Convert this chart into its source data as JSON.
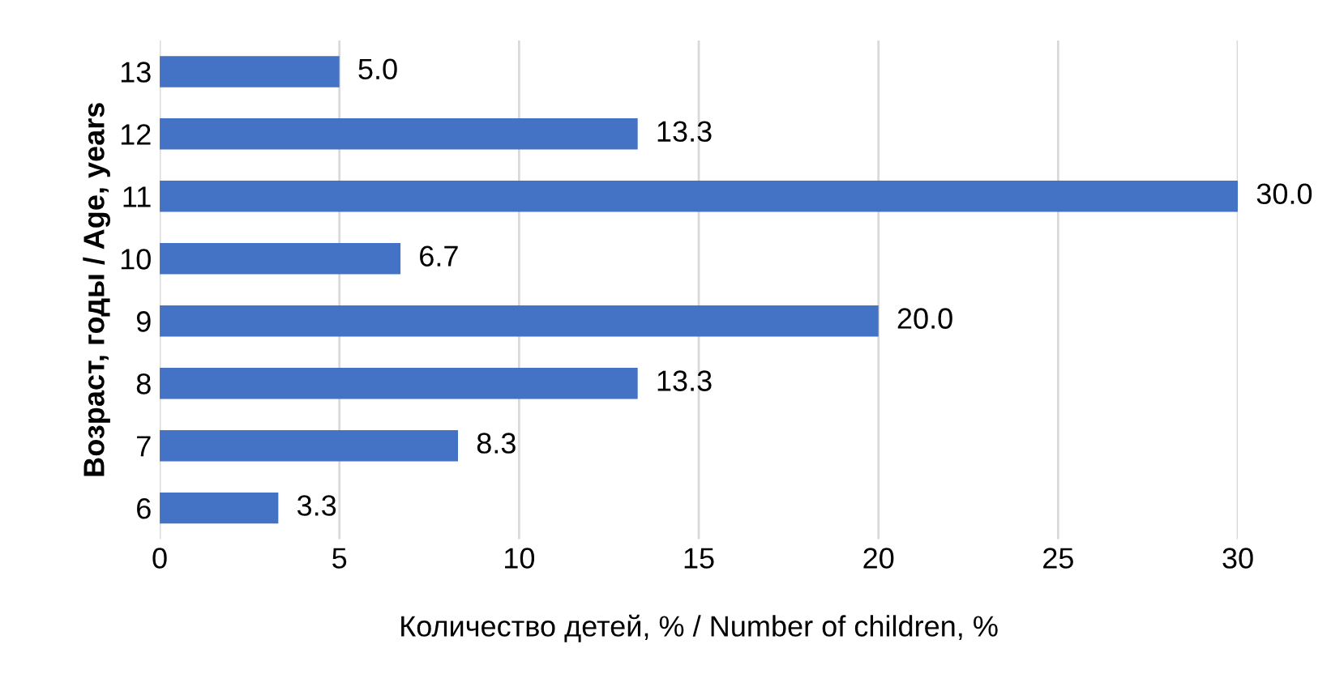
{
  "chart_data": {
    "type": "bar",
    "orientation": "horizontal",
    "xlabel": "Количество детей, % / Number of children, %",
    "ylabel": "Возраст, годы / Age, years",
    "categories": [
      "13",
      "12",
      "11",
      "10",
      "9",
      "8",
      "7",
      "6"
    ],
    "values": [
      5.0,
      13.3,
      30.0,
      6.7,
      20.0,
      13.3,
      8.3,
      3.3
    ],
    "value_labels": [
      "5.0",
      "13.3",
      "30.0",
      "6.7",
      "20.0",
      "13.3",
      "8.3",
      "3.3"
    ],
    "color": "#4472c4",
    "xlim": [
      0,
      30
    ],
    "xticks": [
      0,
      5,
      10,
      15,
      20,
      25,
      30
    ],
    "grid": "x",
    "legend": false
  }
}
